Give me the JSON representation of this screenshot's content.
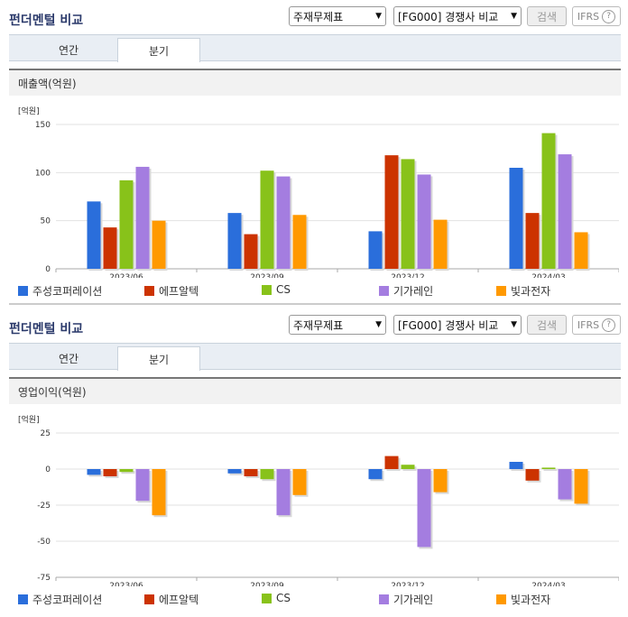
{
  "panels": [
    {
      "title": "펀더멘털 비교",
      "select1": "주재무제표",
      "select2": "[FG000] 경쟁사 비교",
      "search": "검색",
      "ifrs": "IFRS",
      "help": "?",
      "tabs": [
        "연간",
        "분기"
      ],
      "active_tab": 1,
      "section": "매출액(억원)",
      "unit": "[억원]"
    },
    {
      "title": "펀더멘털 비교",
      "select1": "주재무제표",
      "select2": "[FG000] 경쟁사 비교",
      "search": "검색",
      "ifrs": "IFRS",
      "help": "?",
      "tabs": [
        "연간",
        "분기"
      ],
      "active_tab": 1,
      "section": "영업이익(억원)",
      "unit": "[억원]"
    }
  ],
  "colors": [
    "#2a6edb",
    "#cc3300",
    "#88c21a",
    "#a47de0",
    "#ff9900"
  ],
  "chart_data": [
    {
      "type": "bar",
      "title": "매출액(억원)",
      "ylabel": "[억원]",
      "categories": [
        "2023/06",
        "2023/09",
        "2023/12",
        "2024/03"
      ],
      "ylim": [
        0,
        150
      ],
      "yticks": [
        0,
        50,
        100,
        150
      ],
      "grid": true,
      "legend": "bottom",
      "series": [
        {
          "name": "주성코퍼레이션",
          "values": [
            70,
            58,
            39,
            105
          ]
        },
        {
          "name": "에프알텍",
          "values": [
            43,
            36,
            118,
            58
          ]
        },
        {
          "name": "CS",
          "values": [
            92,
            102,
            114,
            141
          ]
        },
        {
          "name": "기가레인",
          "values": [
            106,
            96,
            98,
            119
          ]
        },
        {
          "name": "빛과전자",
          "values": [
            50,
            56,
            51,
            38
          ]
        }
      ]
    },
    {
      "type": "bar",
      "title": "영업이익(억원)",
      "ylabel": "[억원]",
      "categories": [
        "2023/06",
        "2023/09",
        "2023/12",
        "2024/03"
      ],
      "ylim": [
        -75,
        25
      ],
      "yticks": [
        -75,
        -50,
        -25,
        0,
        25
      ],
      "grid": true,
      "legend": "bottom",
      "series": [
        {
          "name": "주성코퍼레이션",
          "values": [
            -4,
            -3,
            -7,
            5
          ]
        },
        {
          "name": "에프알텍",
          "values": [
            -5,
            -5,
            9,
            -8
          ]
        },
        {
          "name": "CS",
          "values": [
            -2,
            -7,
            3,
            1
          ]
        },
        {
          "name": "기가레인",
          "values": [
            -22,
            -32,
            -54,
            -21
          ]
        },
        {
          "name": "빛과전자",
          "values": [
            -32,
            -18,
            -16,
            -24
          ]
        }
      ]
    }
  ]
}
